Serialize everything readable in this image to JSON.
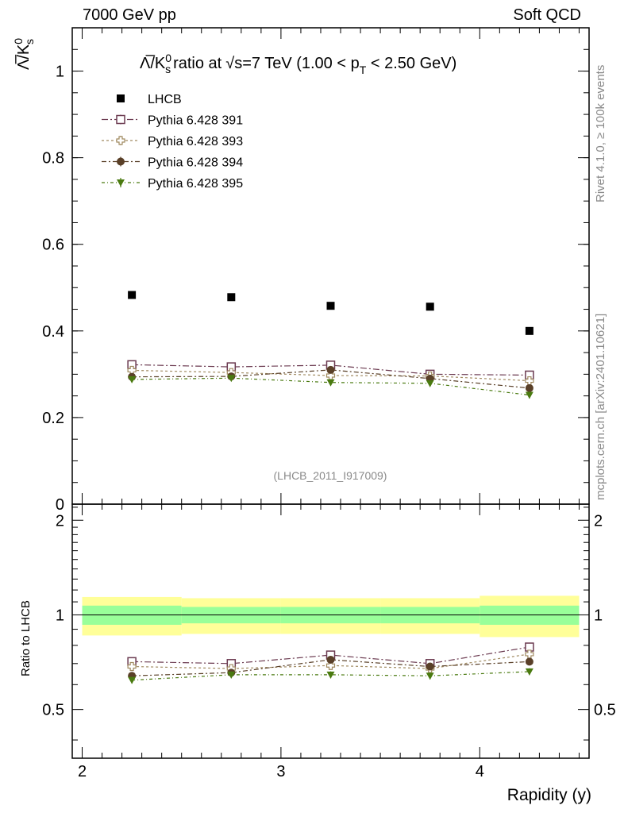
{
  "header": {
    "left": "7000 GeV pp",
    "right": "Soft QCD"
  },
  "side_labels": {
    "rivet": "Rivet 4.1.0, ≥ 100k events",
    "mcplots": "mcplots.cern.ch [arXiv:2401.10621]"
  },
  "colors": {
    "lhcb": "#000000",
    "p391": "#6b3a50",
    "p393": "#a08a60",
    "p394": "#5a4028",
    "p395": "#4a7a10",
    "band_outer": "#ffff99",
    "band_inner": "#99ff99"
  },
  "chart_data": {
    "type": "scatter",
    "title": "Λ̅/K⁰s ratio at √s=7 TeV (1.00 < pT < 2.50 GeV)",
    "title_parts": {
      "main": "ratio at",
      "energy": "=7 TeV (1.00 < p",
      "sub": "T",
      "end": " < 2.50 GeV)"
    },
    "ylabel_main": "Λ̅/K⁰s",
    "ylabel_ratio": "Ratio to LHCB",
    "xlabel": "Rapidity (y)",
    "analysis_tag": "(LHCB_2011_I917009)",
    "xlim": [
      1.95,
      4.55
    ],
    "ylim": [
      0,
      1.1
    ],
    "ratio_ylim": [
      0.35,
      2.25
    ],
    "x_ticks": [
      2,
      3,
      4
    ],
    "y_ticks": [
      0,
      0.2,
      0.4,
      0.6,
      0.8,
      1
    ],
    "ratio_y_ticks": [
      0.5,
      1,
      2
    ],
    "x": [
      2.25,
      2.75,
      3.25,
      3.75,
      4.25
    ],
    "x_edges": [
      2.0,
      2.5,
      3.0,
      3.5,
      4.0,
      4.5
    ],
    "series": [
      {
        "name": "LHCB",
        "marker": "square-filled",
        "color_key": "lhcb",
        "values": [
          0.483,
          0.478,
          0.458,
          0.456,
          0.4
        ]
      },
      {
        "name": "Pythia 6.428 391",
        "marker": "square-open",
        "color_key": "p391",
        "values": [
          0.322,
          0.317,
          0.321,
          0.3,
          0.298
        ],
        "err": [
          0.006,
          0.006,
          0.006,
          0.006,
          0.008
        ]
      },
      {
        "name": "Pythia 6.428 393",
        "marker": "cross-open",
        "color_key": "p393",
        "values": [
          0.309,
          0.304,
          0.297,
          0.296,
          0.285
        ],
        "err": [
          0.006,
          0.006,
          0.006,
          0.006,
          0.008
        ]
      },
      {
        "name": "Pythia 6.428 394",
        "marker": "circle-filled",
        "color_key": "p394",
        "values": [
          0.294,
          0.295,
          0.31,
          0.29,
          0.268
        ],
        "err": [
          0.006,
          0.006,
          0.006,
          0.006,
          0.008
        ]
      },
      {
        "name": "Pythia 6.428 395",
        "marker": "triangle-down",
        "color_key": "p395",
        "values": [
          0.288,
          0.291,
          0.281,
          0.279,
          0.252
        ],
        "err": [
          0.006,
          0.006,
          0.006,
          0.006,
          0.008
        ]
      }
    ],
    "ratio_series": [
      {
        "name": "Pythia 6.428 391",
        "values": [
          0.71,
          0.7,
          0.745,
          0.7,
          0.79
        ]
      },
      {
        "name": "Pythia 6.428 393",
        "values": [
          0.685,
          0.675,
          0.69,
          0.675,
          0.75
        ]
      },
      {
        "name": "Pythia 6.428 394",
        "values": [
          0.64,
          0.655,
          0.72,
          0.685,
          0.71
        ]
      },
      {
        "name": "Pythia 6.428 395",
        "values": [
          0.62,
          0.645,
          0.645,
          0.64,
          0.66
        ]
      }
    ],
    "ratio_band": {
      "outer_half_widths": [
        0.14,
        0.13,
        0.13,
        0.13,
        0.15
      ],
      "inner_half_widths": [
        0.07,
        0.06,
        0.06,
        0.06,
        0.07
      ]
    }
  }
}
